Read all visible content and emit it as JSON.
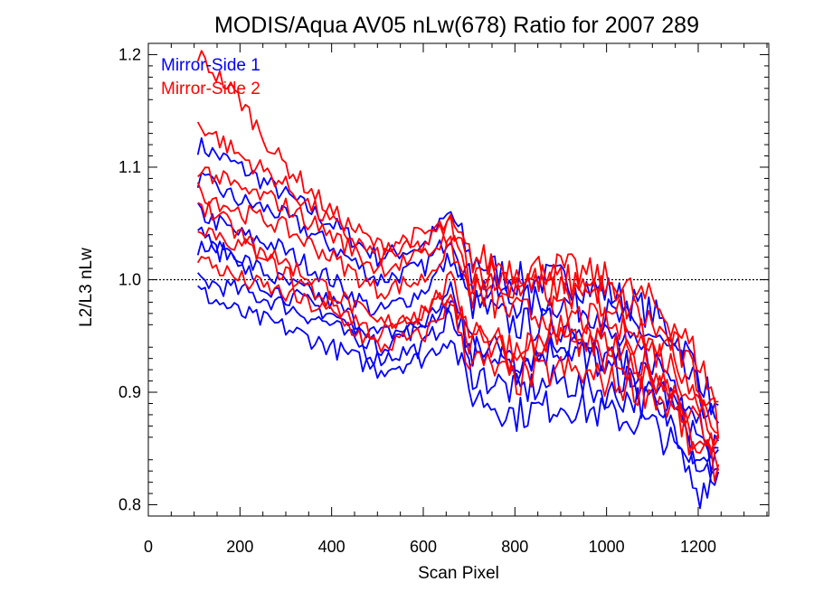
{
  "chart_data": {
    "type": "line",
    "title": "MODIS/Aqua AV05 nLw(678) Ratio for 2007 289",
    "xlabel": "Scan Pixel",
    "ylabel": "L2/L3 nLw",
    "xlim": [
      0,
      1354
    ],
    "ylim": [
      0.79,
      1.21
    ],
    "x_ticks": [
      0,
      200,
      400,
      600,
      800,
      1000,
      1200
    ],
    "x_tick_labels": [
      "0",
      "200",
      "400",
      "600",
      "800",
      "1000",
      "1200"
    ],
    "y_ticks": [
      0.8,
      0.9,
      1.0,
      1.1,
      1.2
    ],
    "y_tick_labels": [
      "0.8",
      "0.9",
      "1.0",
      "1.1",
      "1.2"
    ],
    "reference_line": 1.0,
    "legend_position": "top-left",
    "colors": {
      "mirror_side_1": "#0000ff",
      "mirror_side_2": "#ff0000"
    },
    "series": [
      {
        "name": "Mirror-Side 1",
        "color": "#0000ff",
        "lines": [
          {
            "x": [
              108,
              200,
              280,
              400,
              500,
              600,
              660,
              700,
              800,
              900,
              1000,
              1100,
              1150,
              1200,
              1250
            ],
            "y": [
              1.12,
              1.1,
              1.08,
              1.05,
              1.02,
              1.03,
              1.06,
              1.02,
              1.0,
              1.0,
              0.99,
              0.97,
              0.95,
              0.92,
              0.87
            ]
          },
          {
            "x": [
              108,
              200,
              280,
              400,
              500,
              600,
              660,
              700,
              800,
              900,
              1000,
              1100,
              1150,
              1200,
              1250
            ],
            "y": [
              1.09,
              1.07,
              1.06,
              1.03,
              1.0,
              1.01,
              1.04,
              1.0,
              0.98,
              0.98,
              0.97,
              0.95,
              0.93,
              0.9,
              0.86
            ]
          },
          {
            "x": [
              108,
              200,
              280,
              400,
              500,
              600,
              660,
              700,
              800,
              900,
              1000,
              1100,
              1150,
              1200,
              1250
            ],
            "y": [
              1.06,
              1.04,
              1.03,
              1.0,
              0.97,
              0.99,
              1.02,
              0.98,
              0.96,
              0.96,
              0.95,
              0.93,
              0.91,
              0.88,
              0.84
            ]
          },
          {
            "x": [
              108,
              200,
              280,
              400,
              500,
              600,
              660,
              700,
              800,
              900,
              1000,
              1100,
              1150,
              1200,
              1250
            ],
            "y": [
              1.03,
              1.02,
              1.0,
              0.98,
              0.95,
              0.96,
              0.99,
              0.95,
              0.93,
              0.94,
              0.93,
              0.91,
              0.89,
              0.86,
              0.83
            ]
          },
          {
            "x": [
              108,
              200,
              280,
              400,
              500,
              600,
              660,
              700,
              800,
              900,
              1000,
              1100,
              1150,
              1200,
              1250
            ],
            "y": [
              1.0,
              0.99,
              0.98,
              0.96,
              0.93,
              0.94,
              0.97,
              0.92,
              0.9,
              0.91,
              0.9,
              0.89,
              0.87,
              0.84,
              0.82
            ]
          },
          {
            "x": [
              108,
              200,
              280,
              400,
              500,
              600,
              660,
              700,
              800,
              900,
              1000,
              1100,
              1150,
              1200,
              1250
            ],
            "y": [
              0.99,
              0.97,
              0.96,
              0.94,
              0.92,
              0.93,
              0.95,
              0.9,
              0.88,
              0.89,
              0.88,
              0.87,
              0.85,
              0.81,
              0.84
            ]
          },
          {
            "x": [
              108,
              200,
              280,
              400,
              500,
              600,
              660,
              700,
              800,
              900,
              1000,
              1100,
              1150,
              1200,
              1250
            ],
            "y": [
              1.05,
              1.01,
              0.99,
              0.97,
              0.94,
              0.96,
              0.98,
              0.94,
              0.92,
              0.95,
              0.92,
              0.9,
              0.88,
              0.83,
              0.85
            ]
          }
        ]
      },
      {
        "name": "Mirror-Side 2",
        "color": "#ff0000",
        "lines": [
          {
            "x": [
              108,
              200,
              280,
              400,
              500,
              600,
              660,
              700,
              800,
              900,
              1000,
              1100,
              1150,
              1200,
              1250
            ],
            "y": [
              1.2,
              1.16,
              1.11,
              1.06,
              1.03,
              1.04,
              1.05,
              1.02,
              1.01,
              1.01,
              1.0,
              0.98,
              0.96,
              0.93,
              0.88
            ]
          },
          {
            "x": [
              108,
              200,
              280,
              400,
              500,
              600,
              660,
              700,
              800,
              900,
              1000,
              1100,
              1150,
              1200,
              1250
            ],
            "y": [
              1.14,
              1.11,
              1.09,
              1.05,
              1.02,
              1.03,
              1.05,
              1.01,
              1.0,
              1.0,
              0.99,
              0.96,
              0.94,
              0.91,
              0.87
            ]
          },
          {
            "x": [
              108,
              200,
              280,
              400,
              500,
              600,
              660,
              700,
              800,
              900,
              1000,
              1100,
              1150,
              1200,
              1250
            ],
            "y": [
              1.08,
              1.06,
              1.05,
              1.02,
              0.99,
              1.0,
              1.03,
              0.99,
              0.97,
              0.97,
              0.96,
              0.94,
              0.92,
              0.89,
              0.85
            ]
          },
          {
            "x": [
              108,
              200,
              280,
              400,
              500,
              600,
              660,
              700,
              800,
              900,
              1000,
              1100,
              1150,
              1200,
              1250
            ],
            "y": [
              1.05,
              1.03,
              1.02,
              0.99,
              0.96,
              0.97,
              1.0,
              0.96,
              0.94,
              0.95,
              0.94,
              0.92,
              0.9,
              0.87,
              0.84
            ]
          },
          {
            "x": [
              108,
              200,
              280,
              400,
              500,
              600,
              660,
              700,
              800,
              900,
              1000,
              1100,
              1150,
              1200,
              1250
            ],
            "y": [
              1.02,
              1.0,
              0.99,
              0.97,
              0.94,
              0.95,
              0.98,
              0.93,
              0.91,
              0.92,
              0.91,
              0.9,
              0.88,
              0.85,
              0.83
            ]
          },
          {
            "x": [
              108,
              200,
              280,
              400,
              500,
              600,
              660,
              700,
              800,
              900,
              1000,
              1100,
              1150,
              1200,
              1250
            ],
            "y": [
              1.07,
              1.04,
              1.01,
              0.98,
              0.95,
              0.97,
              0.99,
              0.95,
              0.93,
              0.96,
              0.93,
              0.91,
              0.89,
              0.84,
              0.86
            ]
          },
          {
            "x": [
              108,
              200,
              280,
              400,
              500,
              600,
              660,
              700,
              800,
              900,
              1000,
              1100,
              1150,
              1200,
              1250
            ],
            "y": [
              1.1,
              1.08,
              1.07,
              1.04,
              1.01,
              1.02,
              1.04,
              1.0,
              0.99,
              0.99,
              0.98,
              0.95,
              0.93,
              0.9,
              0.86
            ]
          }
        ]
      }
    ]
  }
}
